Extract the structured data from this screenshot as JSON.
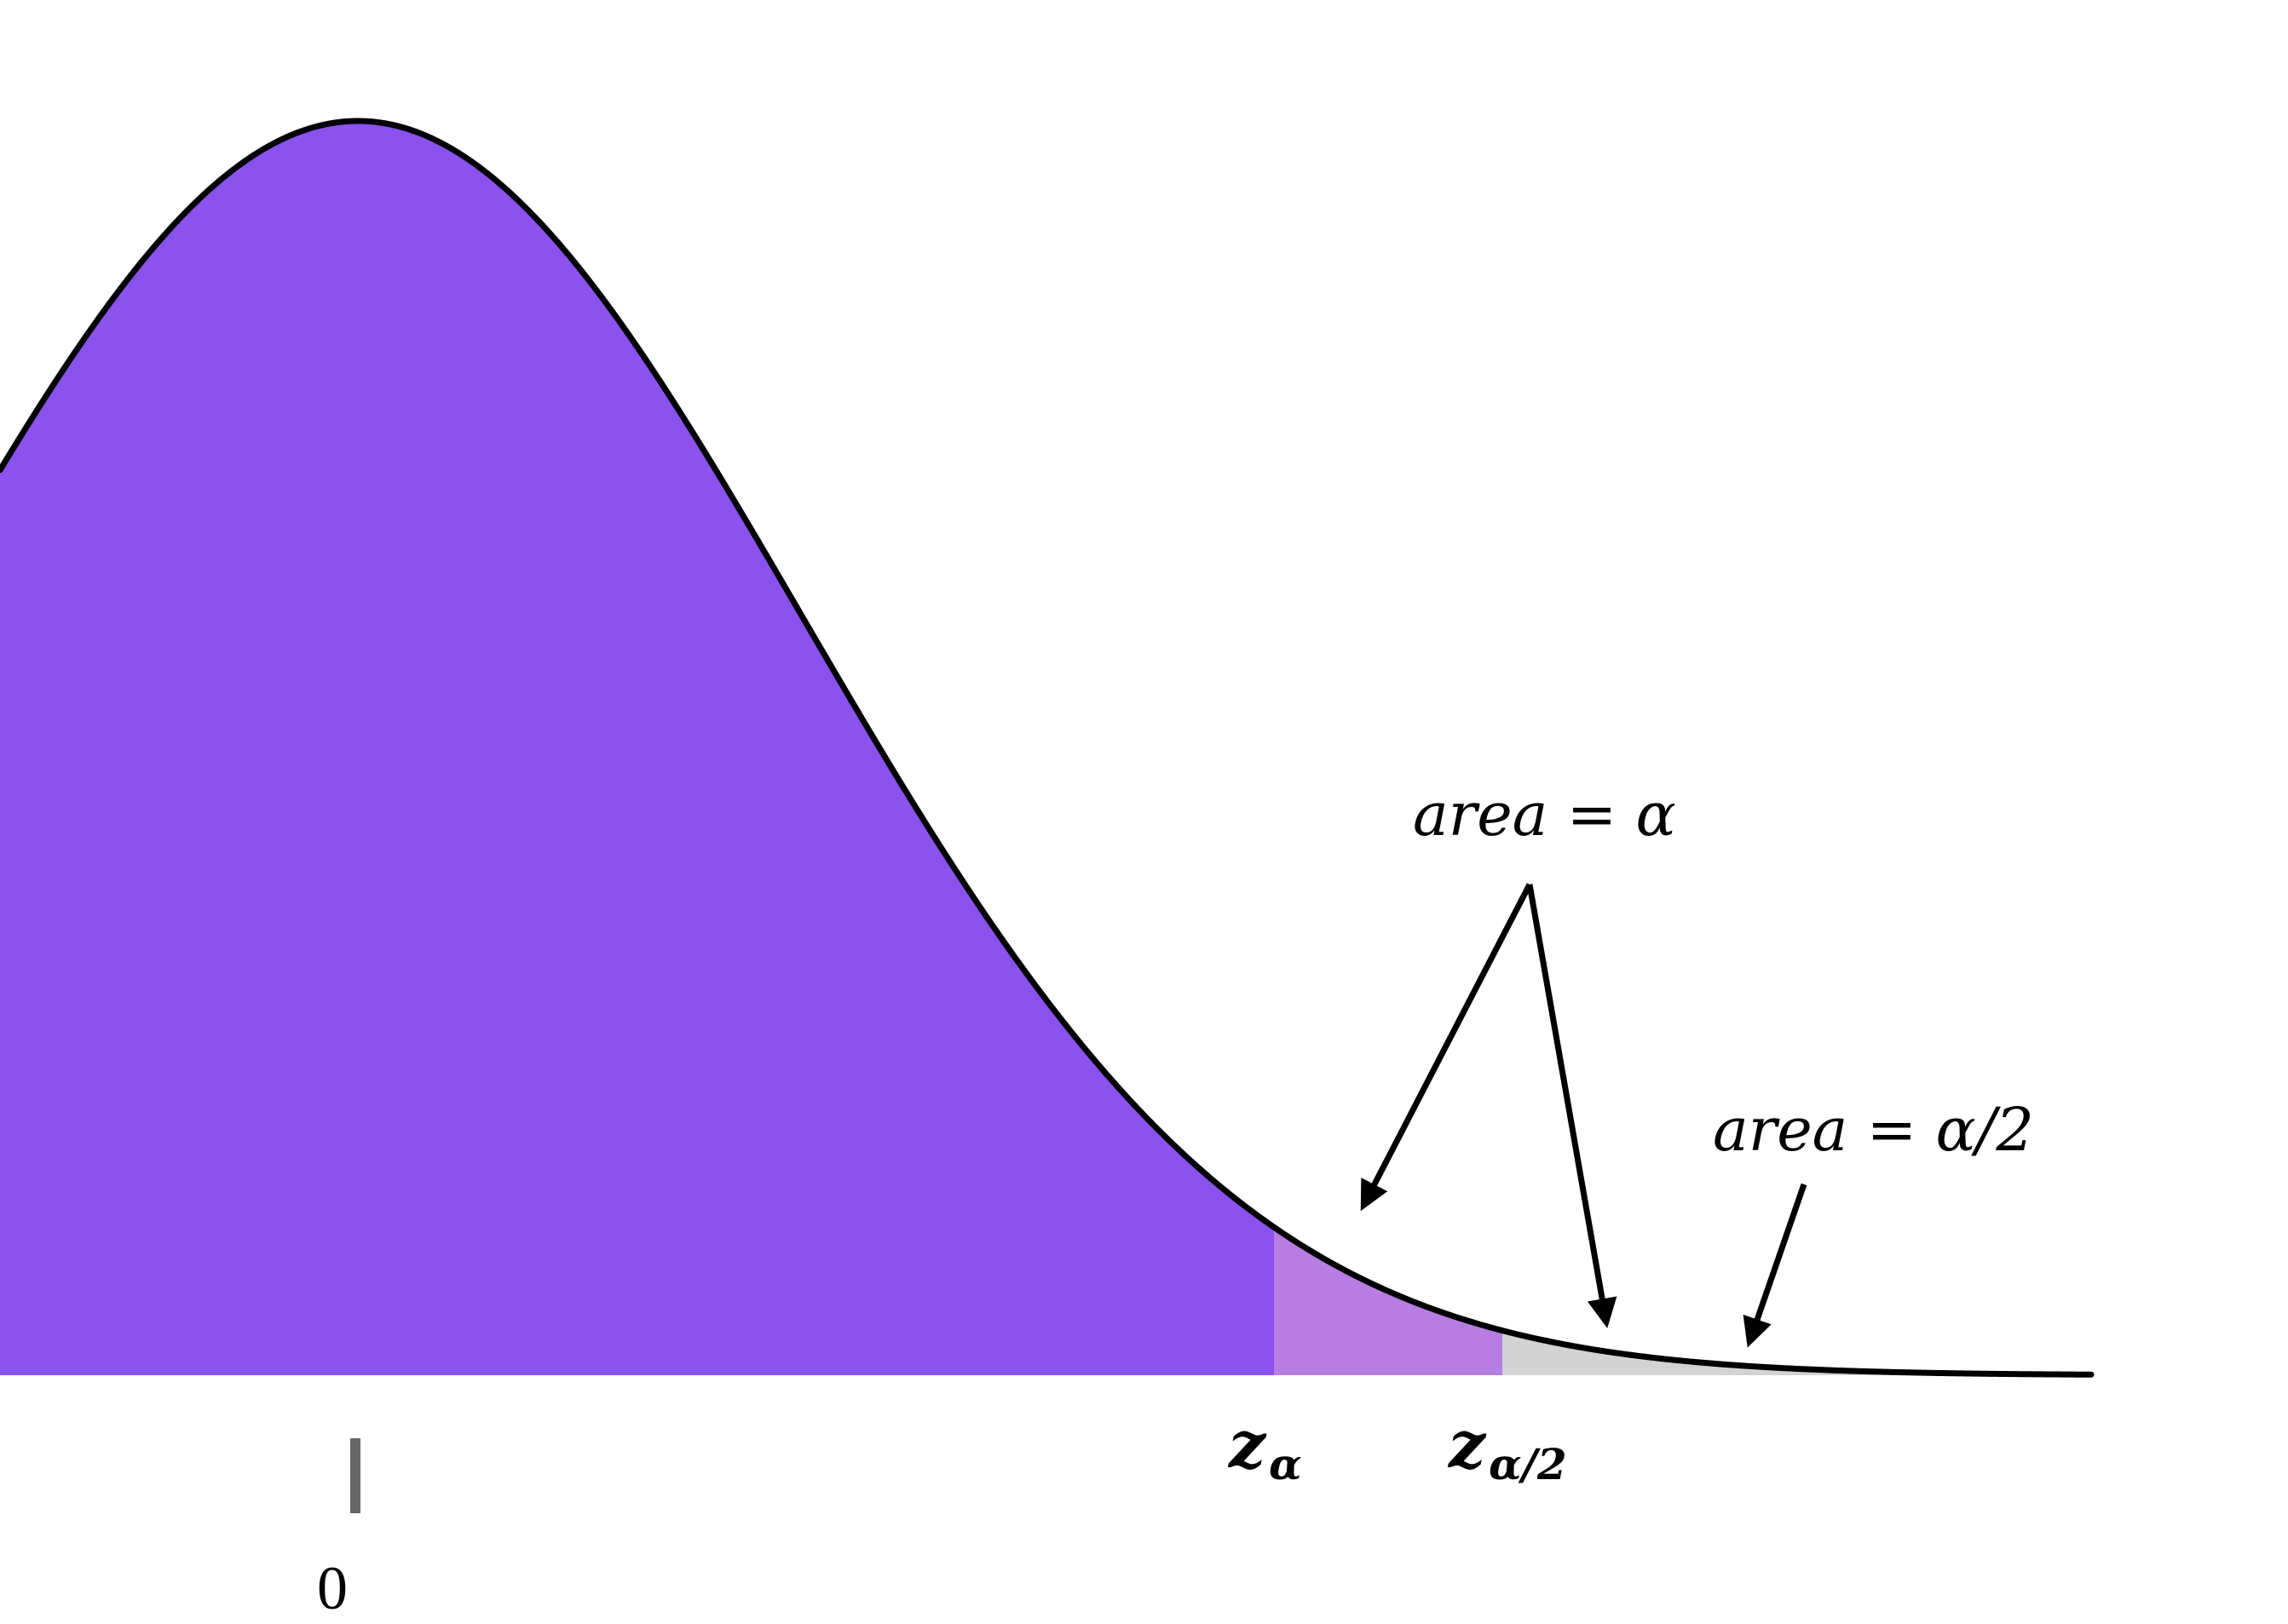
{
  "diagram": {
    "colors": {
      "body_fill": "#8b52ee",
      "alpha_band_fill": "#b77de2",
      "tail_fill": "#d3d3d3",
      "curve_stroke": "#000000",
      "tick": "#666666",
      "text": "#000000"
    },
    "labels": {
      "z_alpha_main": "z",
      "z_alpha_sub": "α",
      "z_half_alpha_main": "z",
      "z_half_alpha_sub": "α/2",
      "zero": "0",
      "area_alpha": "area = α",
      "area_half_alpha": "area = α/2"
    }
  }
}
